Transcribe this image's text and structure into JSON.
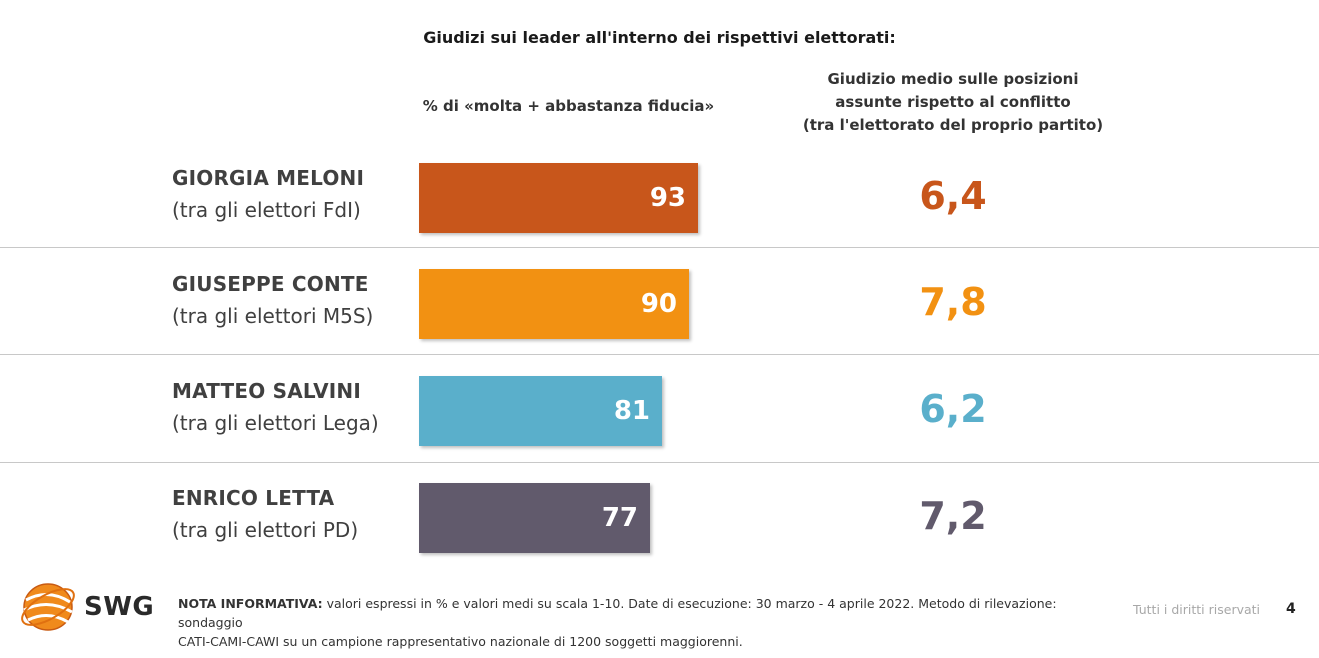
{
  "title": "Giudizi sui leader all'interno dei rispettivi elettorati:",
  "column1_header": "% di «molta + abbastanza fiducia»",
  "column2_header": {
    "line1": "Giudizio medio sulle posizioni",
    "line2": "assunte rispetto al conflitto",
    "line3": "(tra l'elettorato del proprio partito)"
  },
  "rows": [
    {
      "name": "GIORGIA MELONI",
      "sub": "(tra gli elettori FdI)",
      "trust": "93",
      "score": "6,4",
      "color": "#C8561B"
    },
    {
      "name": "GIUSEPPE CONTE",
      "sub": "(tra gli elettori M5S)",
      "trust": "90",
      "score": "7,8",
      "color": "#F29112"
    },
    {
      "name": "MATTEO SALVINI",
      "sub": "(tra gli elettori Lega)",
      "trust": "81",
      "score": "6,2",
      "color": "#5AAFCB"
    },
    {
      "name": "ENRICO LETTA",
      "sub": "(tra gli elettori PD)",
      "trust": "77",
      "score": "7,2",
      "color": "#615A6C"
    }
  ],
  "chart_data": {
    "type": "bar",
    "orientation": "horizontal",
    "categories": [
      "GIORGIA MELONI",
      "GIUSEPPE CONTE",
      "MATTEO SALVINI",
      "ENRICO LETTA"
    ],
    "values": [
      93,
      90,
      81,
      77
    ],
    "secondary_values": [
      6.4,
      7.8,
      6.2,
      7.2
    ],
    "colors": [
      "#C8561B",
      "#F29112",
      "#5AAFCB",
      "#615A6C"
    ],
    "xlim": [
      0,
      100
    ],
    "grid": false
  },
  "footer": {
    "logo_text": "SWG",
    "note_label": "NOTA INFORMATIVA:",
    "note_line1": " valori espressi in % e valori medi su scala 1-10. Date di esecuzione: 30 marzo - 4 aprile 2022. Metodo di rilevazione: sondaggio",
    "note_line2": "CATI-CAMI-CAWI su un campione rappresentativo nazionale di 1200 soggetti maggiorenni.",
    "rights": "Tutti i diritti riservati",
    "page_number": "4"
  }
}
